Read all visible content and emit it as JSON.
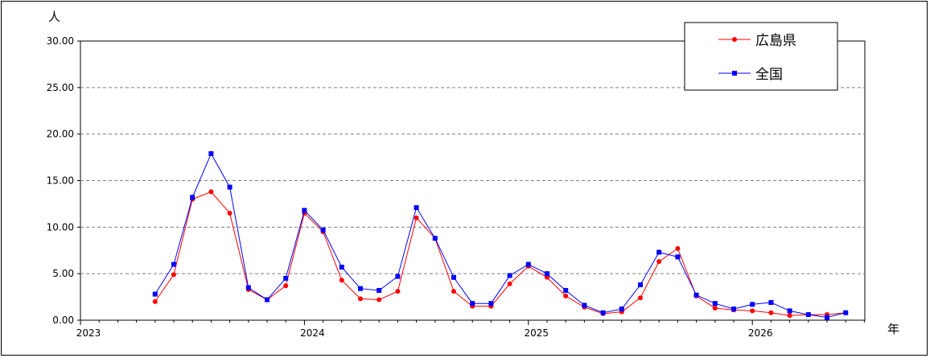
{
  "chart_data": {
    "type": "line",
    "ylabel": "人",
    "xlabel": "年",
    "ylim": [
      0,
      30
    ],
    "y_ticks": [
      "0.00",
      "5.00",
      "10.00",
      "15.00",
      "20.00",
      "25.00",
      "30.00"
    ],
    "x_tick_labels": [
      "2023",
      "2024",
      "2025",
      "2026"
    ],
    "x_start_year": 2023,
    "months_shown": 42,
    "grid": "horizontal dashed",
    "legend_position": "top-right",
    "series": [
      {
        "name": "広島県",
        "color": "#ff0000",
        "marker": "circle",
        "start_index": 4,
        "values": [
          2.0,
          4.9,
          13.0,
          13.8,
          11.5,
          3.3,
          2.2,
          3.7,
          11.5,
          9.5,
          4.3,
          2.3,
          2.2,
          3.1,
          11.0,
          8.8,
          3.1,
          1.5,
          1.5,
          3.9,
          5.8,
          4.6,
          2.6,
          1.4,
          0.7,
          0.9,
          2.4,
          6.3,
          7.7,
          2.6,
          1.3,
          1.1,
          1.0,
          0.8,
          0.5,
          0.6,
          0.6,
          0.8
        ]
      },
      {
        "name": "全国",
        "color": "#0000ff",
        "marker": "square",
        "start_index": 4,
        "values": [
          2.8,
          6.0,
          13.2,
          17.9,
          14.3,
          3.5,
          2.2,
          4.5,
          11.8,
          9.7,
          5.7,
          3.4,
          3.2,
          4.7,
          12.1,
          8.8,
          4.6,
          1.8,
          1.8,
          4.8,
          6.0,
          5.0,
          3.2,
          1.6,
          0.8,
          1.2,
          3.8,
          7.3,
          6.8,
          2.7,
          1.8,
          1.2,
          1.7,
          1.9,
          1.0,
          0.6,
          0.3,
          0.8
        ]
      }
    ]
  }
}
